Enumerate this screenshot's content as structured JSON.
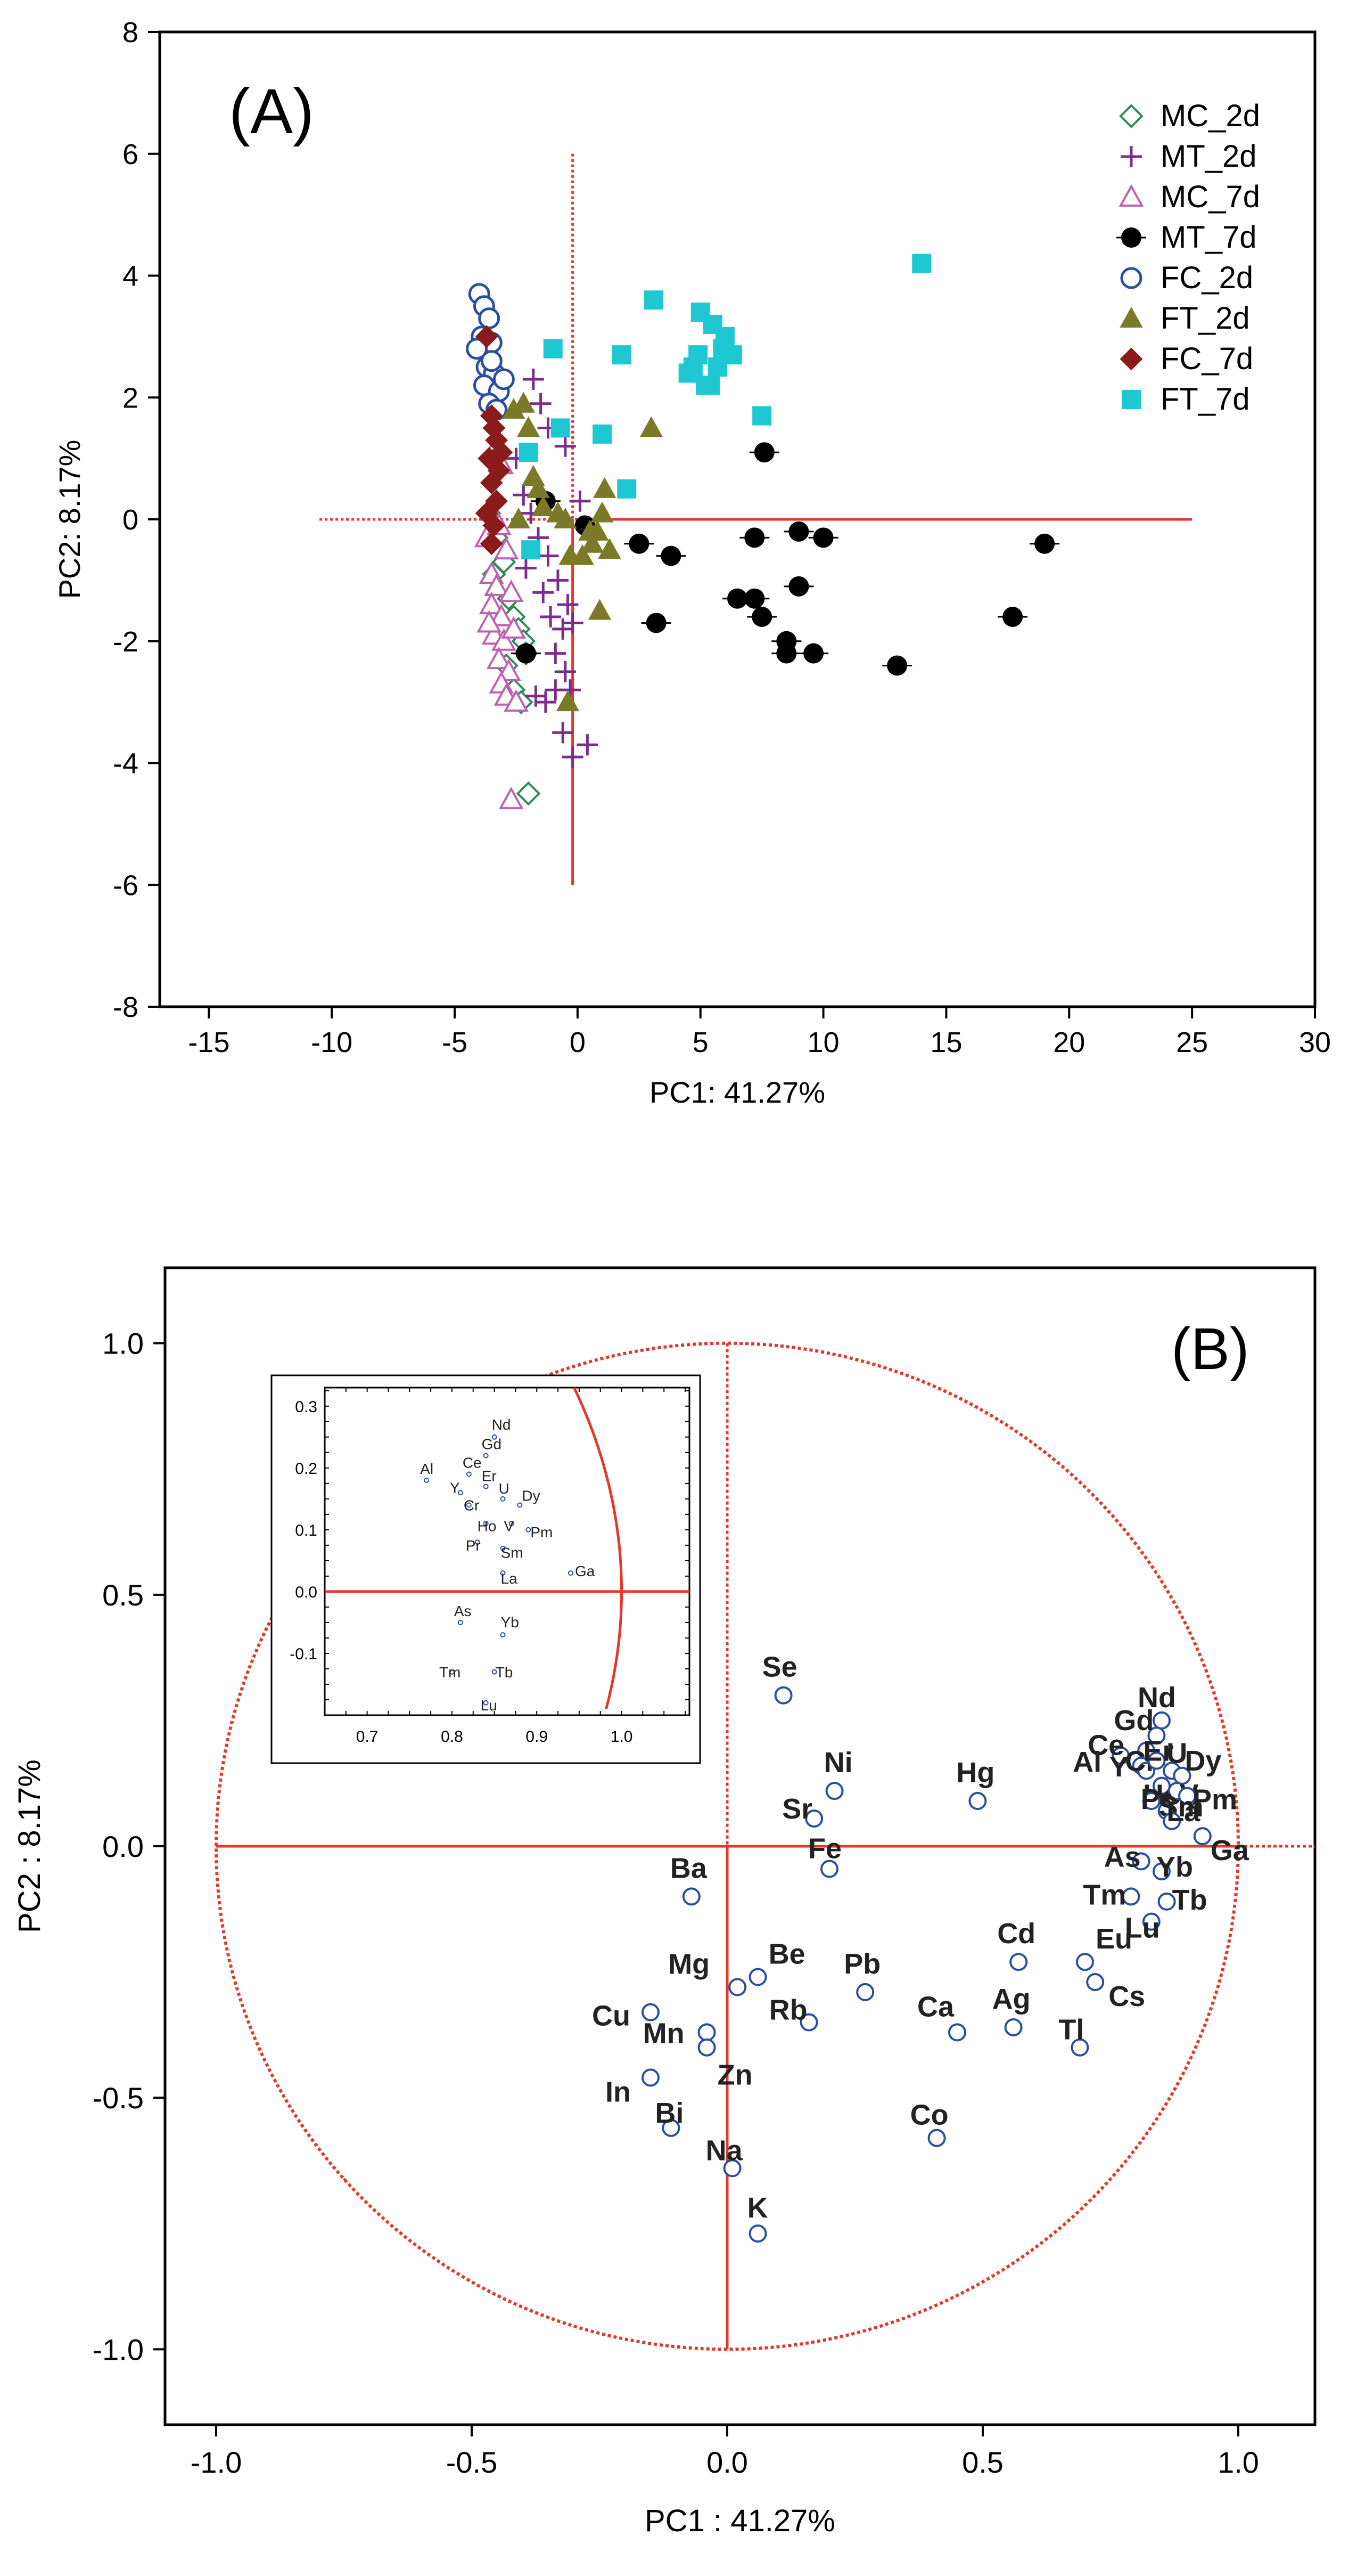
{
  "chart_data": [
    {
      "type": "scatter",
      "panel_label": "(A)",
      "xlabel": "PC1: 41.27%",
      "ylabel": "PC2:  8.17%",
      "xlim": [
        -17,
        30
      ],
      "ylim": [
        -8,
        8
      ],
      "xticks": [
        -15,
        -10,
        -5,
        0,
        5,
        10,
        15,
        20,
        25,
        30
      ],
      "yticks": [
        -8,
        -6,
        -4,
        -2,
        0,
        2,
        4,
        6,
        8
      ],
      "grid": false,
      "legend_position": "top-right",
      "reference_lines": {
        "horizontal": {
          "y": 0,
          "x_from": -10.5,
          "x_to": 25
        },
        "vertical": {
          "x": -0.2,
          "y_from": -6,
          "y_to": 6
        }
      },
      "series": [
        {
          "name": "MC_2d",
          "marker": "diamond-open",
          "color": "#2e8b57",
          "points": [
            [
              -3.6,
              0.1
            ],
            [
              -3.3,
              -0.3
            ],
            [
              -3.0,
              -0.7
            ],
            [
              -2.8,
              -1.3
            ],
            [
              -2.6,
              -1.6
            ],
            [
              -2.4,
              -1.8
            ],
            [
              -2.2,
              -2.0
            ],
            [
              -2.9,
              -2.4
            ],
            [
              -2.6,
              -2.8
            ],
            [
              -2.3,
              -3.0
            ],
            [
              -3.4,
              -0.9
            ],
            [
              -2.1,
              -2.2
            ],
            [
              -2.0,
              -4.5
            ]
          ]
        },
        {
          "name": "MT_2d",
          "marker": "plus",
          "color": "#7b2d8e",
          "points": [
            [
              -1.8,
              2.3
            ],
            [
              -1.5,
              1.9
            ],
            [
              -1.2,
              1.5
            ],
            [
              -0.5,
              1.2
            ],
            [
              0.1,
              0.3
            ],
            [
              -2.5,
              1.0
            ],
            [
              -2.2,
              0.4
            ],
            [
              -1.9,
              0.1
            ],
            [
              -1.6,
              -0.3
            ],
            [
              -1.2,
              -0.6
            ],
            [
              -0.8,
              -1.0
            ],
            [
              -0.4,
              -1.4
            ],
            [
              -1.1,
              -1.6
            ],
            [
              -0.6,
              -1.8
            ],
            [
              -0.2,
              -1.7
            ],
            [
              -0.9,
              -2.2
            ],
            [
              -0.5,
              -2.5
            ],
            [
              -1.7,
              -2.9
            ],
            [
              -1.3,
              -3.0
            ],
            [
              -0.9,
              -2.8
            ],
            [
              -0.3,
              -2.8
            ],
            [
              -0.6,
              -3.5
            ],
            [
              -0.2,
              -3.9
            ],
            [
              0.4,
              -3.7
            ],
            [
              -2.1,
              -0.8
            ],
            [
              -1.4,
              -1.2
            ]
          ]
        },
        {
          "name": "MC_7d",
          "marker": "triangle-open",
          "color": "#c060b0",
          "points": [
            [
              -3.7,
              -0.3
            ],
            [
              -3.5,
              -0.9
            ],
            [
              -3.3,
              -1.1
            ],
            [
              -3.5,
              -1.4
            ],
            [
              -3.1,
              -1.6
            ],
            [
              -3.4,
              -1.9
            ],
            [
              -3.0,
              -2.0
            ],
            [
              -3.2,
              -2.3
            ],
            [
              -2.8,
              -2.5
            ],
            [
              -3.1,
              -2.7
            ],
            [
              -2.7,
              -1.2
            ],
            [
              -2.9,
              -0.5
            ],
            [
              -3.6,
              -1.7
            ],
            [
              -3.3,
              1.2
            ],
            [
              -3.1,
              0.9
            ],
            [
              -2.9,
              -2.9
            ],
            [
              -2.5,
              -3.0
            ],
            [
              -2.7,
              -4.6
            ],
            [
              -3.2,
              -0.1
            ],
            [
              -2.6,
              -1.8
            ]
          ]
        },
        {
          "name": "MT_7d",
          "marker": "circle-filled",
          "color": "#000000",
          "points": [
            [
              -2.1,
              -2.2
            ],
            [
              -1.3,
              0.3
            ],
            [
              0.3,
              -0.1
            ],
            [
              2.5,
              -0.4
            ],
            [
              3.2,
              -1.7
            ],
            [
              3.8,
              -0.6
            ],
            [
              6.5,
              -1.3
            ],
            [
              7.2,
              -0.3
            ],
            [
              7.2,
              -1.3
            ],
            [
              7.5,
              -1.6
            ],
            [
              7.6,
              1.1
            ],
            [
              8.5,
              -2.0
            ],
            [
              8.5,
              -2.2
            ],
            [
              9.0,
              -0.2
            ],
            [
              9.0,
              -1.1
            ],
            [
              9.6,
              -2.2
            ],
            [
              10.0,
              -0.3
            ],
            [
              13.0,
              -2.4
            ],
            [
              17.7,
              -1.6
            ],
            [
              19.0,
              -0.4
            ]
          ]
        },
        {
          "name": "FC_2d",
          "marker": "circle-open",
          "color": "#2a4fa0",
          "points": [
            [
              -4.0,
              3.7
            ],
            [
              -3.8,
              3.5
            ],
            [
              -3.6,
              3.3
            ],
            [
              -3.9,
              3.0
            ],
            [
              -3.5,
              2.9
            ],
            [
              -3.7,
              2.5
            ],
            [
              -3.4,
              2.4
            ],
            [
              -3.8,
              2.2
            ],
            [
              -3.2,
              2.1
            ],
            [
              -3.6,
              1.9
            ],
            [
              -3.3,
              1.8
            ],
            [
              -3.0,
              2.3
            ],
            [
              -4.1,
              2.8
            ],
            [
              -3.5,
              2.6
            ]
          ]
        },
        {
          "name": "FT_2d",
          "marker": "triangle-filled",
          "color": "#7a7a28",
          "points": [
            [
              -2.6,
              1.8
            ],
            [
              -2.2,
              1.9
            ],
            [
              -2.0,
              1.5
            ],
            [
              -1.8,
              0.7
            ],
            [
              -1.6,
              0.5
            ],
            [
              -1.4,
              0.2
            ],
            [
              -0.8,
              0.1
            ],
            [
              -0.5,
              0.0
            ],
            [
              -0.3,
              -0.6
            ],
            [
              0.2,
              -0.6
            ],
            [
              0.6,
              -0.4
            ],
            [
              0.8,
              -0.2
            ],
            [
              1.0,
              0.1
            ],
            [
              1.1,
              0.5
            ],
            [
              1.3,
              -0.5
            ],
            [
              0.5,
              -0.2
            ],
            [
              0.9,
              -1.5
            ],
            [
              3.0,
              1.5
            ],
            [
              -0.4,
              -3.0
            ],
            [
              -2.4,
              0.0
            ]
          ]
        },
        {
          "name": "FC_7d",
          "marker": "diamond-filled",
          "color": "#8b1a1a",
          "points": [
            [
              -3.7,
              3.0
            ],
            [
              -3.5,
              1.7
            ],
            [
              -3.4,
              1.5
            ],
            [
              -3.3,
              1.3
            ],
            [
              -3.6,
              1.0
            ],
            [
              -3.2,
              0.8
            ],
            [
              -3.5,
              0.6
            ],
            [
              -3.3,
              0.3
            ],
            [
              -3.7,
              0.1
            ],
            [
              -3.4,
              -0.1
            ],
            [
              -3.5,
              -0.4
            ],
            [
              -3.1,
              1.1
            ]
          ]
        },
        {
          "name": "FT_7d",
          "marker": "square-filled",
          "color": "#1ec8d2",
          "points": [
            [
              -2.0,
              1.1
            ],
            [
              -1.9,
              -0.5
            ],
            [
              -1.0,
              2.8
            ],
            [
              -0.7,
              1.5
            ],
            [
              1.0,
              1.4
            ],
            [
              1.8,
              2.7
            ],
            [
              2.0,
              0.5
            ],
            [
              3.1,
              3.6
            ],
            [
              4.5,
              2.4
            ],
            [
              4.7,
              2.5
            ],
            [
              4.9,
              2.7
            ],
            [
              5.0,
              3.4
            ],
            [
              5.2,
              2.2
            ],
            [
              5.4,
              2.2
            ],
            [
              5.5,
              3.2
            ],
            [
              5.7,
              2.5
            ],
            [
              5.9,
              2.8
            ],
            [
              6.0,
              3.0
            ],
            [
              6.3,
              2.7
            ],
            [
              7.5,
              1.7
            ],
            [
              14.0,
              4.2
            ]
          ]
        }
      ]
    },
    {
      "type": "scatter",
      "panel_label": "(B)",
      "xlabel": "PC1 : 41.27%",
      "ylabel": "PC2 :  8.17%",
      "xlim": [
        -1.1,
        1.15
      ],
      "ylim": [
        -1.15,
        1.15
      ],
      "xticks": [
        -1.0,
        -0.5,
        0.0,
        0.5,
        1.0
      ],
      "yticks": [
        -1.0,
        -0.5,
        0.0,
        0.5,
        1.0
      ],
      "xticklabels": [
        "-1.0",
        "-0.5",
        "0.0",
        "0.5",
        "1.0"
      ],
      "yticklabels": [
        "-1.0",
        "-0.5",
        "0.0",
        "0.5",
        "1.0"
      ],
      "grid": false,
      "unit_circle": true,
      "marker_color": "#2a4fa0",
      "loadings": [
        {
          "label": "Se",
          "x": 0.11,
          "y": 0.3
        },
        {
          "label": "Ni",
          "x": 0.21,
          "y": 0.11
        },
        {
          "label": "Sr",
          "x": 0.17,
          "y": 0.055
        },
        {
          "label": "Fe",
          "x": 0.2,
          "y": -0.045
        },
        {
          "label": "Hg",
          "x": 0.49,
          "y": 0.09
        },
        {
          "label": "Ba",
          "x": -0.07,
          "y": -0.1
        },
        {
          "label": "Mg",
          "x": 0.02,
          "y": -0.28
        },
        {
          "label": "Be",
          "x": 0.06,
          "y": -0.26
        },
        {
          "label": "Mn",
          "x": -0.04,
          "y": -0.37
        },
        {
          "label": "Zn",
          "x": -0.04,
          "y": -0.4
        },
        {
          "label": "Cu",
          "x": -0.15,
          "y": -0.33
        },
        {
          "label": "Rb",
          "x": 0.16,
          "y": -0.35
        },
        {
          "label": "Pb",
          "x": 0.27,
          "y": -0.29
        },
        {
          "label": "In",
          "x": -0.15,
          "y": -0.46
        },
        {
          "label": "Bi",
          "x": -0.11,
          "y": -0.56
        },
        {
          "label": "Na",
          "x": 0.01,
          "y": -0.64
        },
        {
          "label": "K",
          "x": 0.06,
          "y": -0.77
        },
        {
          "label": "Cd",
          "x": 0.57,
          "y": -0.23
        },
        {
          "label": "Ca",
          "x": 0.45,
          "y": -0.37
        },
        {
          "label": "Ag",
          "x": 0.56,
          "y": -0.36
        },
        {
          "label": "Co",
          "x": 0.41,
          "y": -0.58
        },
        {
          "label": "Eu",
          "x": 0.7,
          "y": -0.23
        },
        {
          "label": "Cs",
          "x": 0.72,
          "y": -0.27
        },
        {
          "label": "Tl",
          "x": 0.69,
          "y": -0.4
        },
        {
          "label": "Al",
          "x": 0.77,
          "y": 0.18
        },
        {
          "label": "Nd",
          "x": 0.85,
          "y": 0.25
        },
        {
          "label": "Gd",
          "x": 0.84,
          "y": 0.22
        },
        {
          "label": "Ce",
          "x": 0.82,
          "y": 0.19
        },
        {
          "label": "Y",
          "x": 0.81,
          "y": 0.16
        },
        {
          "label": "Cr",
          "x": 0.82,
          "y": 0.15
        },
        {
          "label": "Er",
          "x": 0.84,
          "y": 0.17
        },
        {
          "label": "U",
          "x": 0.87,
          "y": 0.15
        },
        {
          "label": "Dy",
          "x": 0.89,
          "y": 0.14
        },
        {
          "label": "Ho",
          "x": 0.85,
          "y": 0.12
        },
        {
          "label": "V",
          "x": 0.88,
          "y": 0.11
        },
        {
          "label": "Pm",
          "x": 0.9,
          "y": 0.1
        },
        {
          "label": "Pr",
          "x": 0.83,
          "y": 0.09
        },
        {
          "label": "Sm",
          "x": 0.86,
          "y": 0.07
        },
        {
          "label": "La",
          "x": 0.87,
          "y": 0.05
        },
        {
          "label": "Ga",
          "x": 0.93,
          "y": 0.02
        },
        {
          "label": "As",
          "x": 0.81,
          "y": -0.03
        },
        {
          "label": "Yb",
          "x": 0.85,
          "y": -0.05
        },
        {
          "label": "Tm",
          "x": 0.79,
          "y": -0.1
        },
        {
          "label": "Tb",
          "x": 0.86,
          "y": -0.11
        },
        {
          "label": "Lu",
          "x": 0.83,
          "y": -0.15
        }
      ],
      "inset": {
        "xlim": [
          0.65,
          1.08
        ],
        "ylim": [
          -0.2,
          0.33
        ],
        "xticks": [
          0.7,
          0.8,
          0.9,
          1.0
        ],
        "yticks": [
          -0.1,
          0.0,
          0.1,
          0.2,
          0.3
        ],
        "xticklabels": [
          "0.7",
          "0.8",
          "0.9",
          "1.0"
        ],
        "yticklabels": [
          "-0.1",
          "0.0",
          "0.1",
          "0.2",
          "0.3"
        ],
        "points": [
          {
            "label": "Al",
            "x": 0.77,
            "y": 0.18
          },
          {
            "label": "Nd",
            "x": 0.85,
            "y": 0.25
          },
          {
            "label": "Gd",
            "x": 0.84,
            "y": 0.22
          },
          {
            "label": "Ce",
            "x": 0.82,
            "y": 0.19
          },
          {
            "label": "Y",
            "x": 0.81,
            "y": 0.16
          },
          {
            "label": "Er",
            "x": 0.84,
            "y": 0.17
          },
          {
            "label": "Cr",
            "x": 0.82,
            "y": 0.14
          },
          {
            "label": "U",
            "x": 0.86,
            "y": 0.15
          },
          {
            "label": "Dy",
            "x": 0.88,
            "y": 0.14
          },
          {
            "label": "Ho",
            "x": 0.84,
            "y": 0.11
          },
          {
            "label": "V",
            "x": 0.87,
            "y": 0.11
          },
          {
            "label": "Pm",
            "x": 0.89,
            "y": 0.1
          },
          {
            "label": "Pr",
            "x": 0.83,
            "y": 0.08
          },
          {
            "label": "Sm",
            "x": 0.86,
            "y": 0.07
          },
          {
            "label": "La",
            "x": 0.86,
            "y": 0.03
          },
          {
            "label": "Ga",
            "x": 0.94,
            "y": 0.03
          },
          {
            "label": "As",
            "x": 0.81,
            "y": -0.05
          },
          {
            "label": "Yb",
            "x": 0.86,
            "y": -0.07
          },
          {
            "label": "Tm",
            "x": 0.8,
            "y": -0.13
          },
          {
            "label": "Tb",
            "x": 0.85,
            "y": -0.13
          },
          {
            "label": "Lu",
            "x": 0.84,
            "y": -0.18
          }
        ]
      }
    }
  ]
}
